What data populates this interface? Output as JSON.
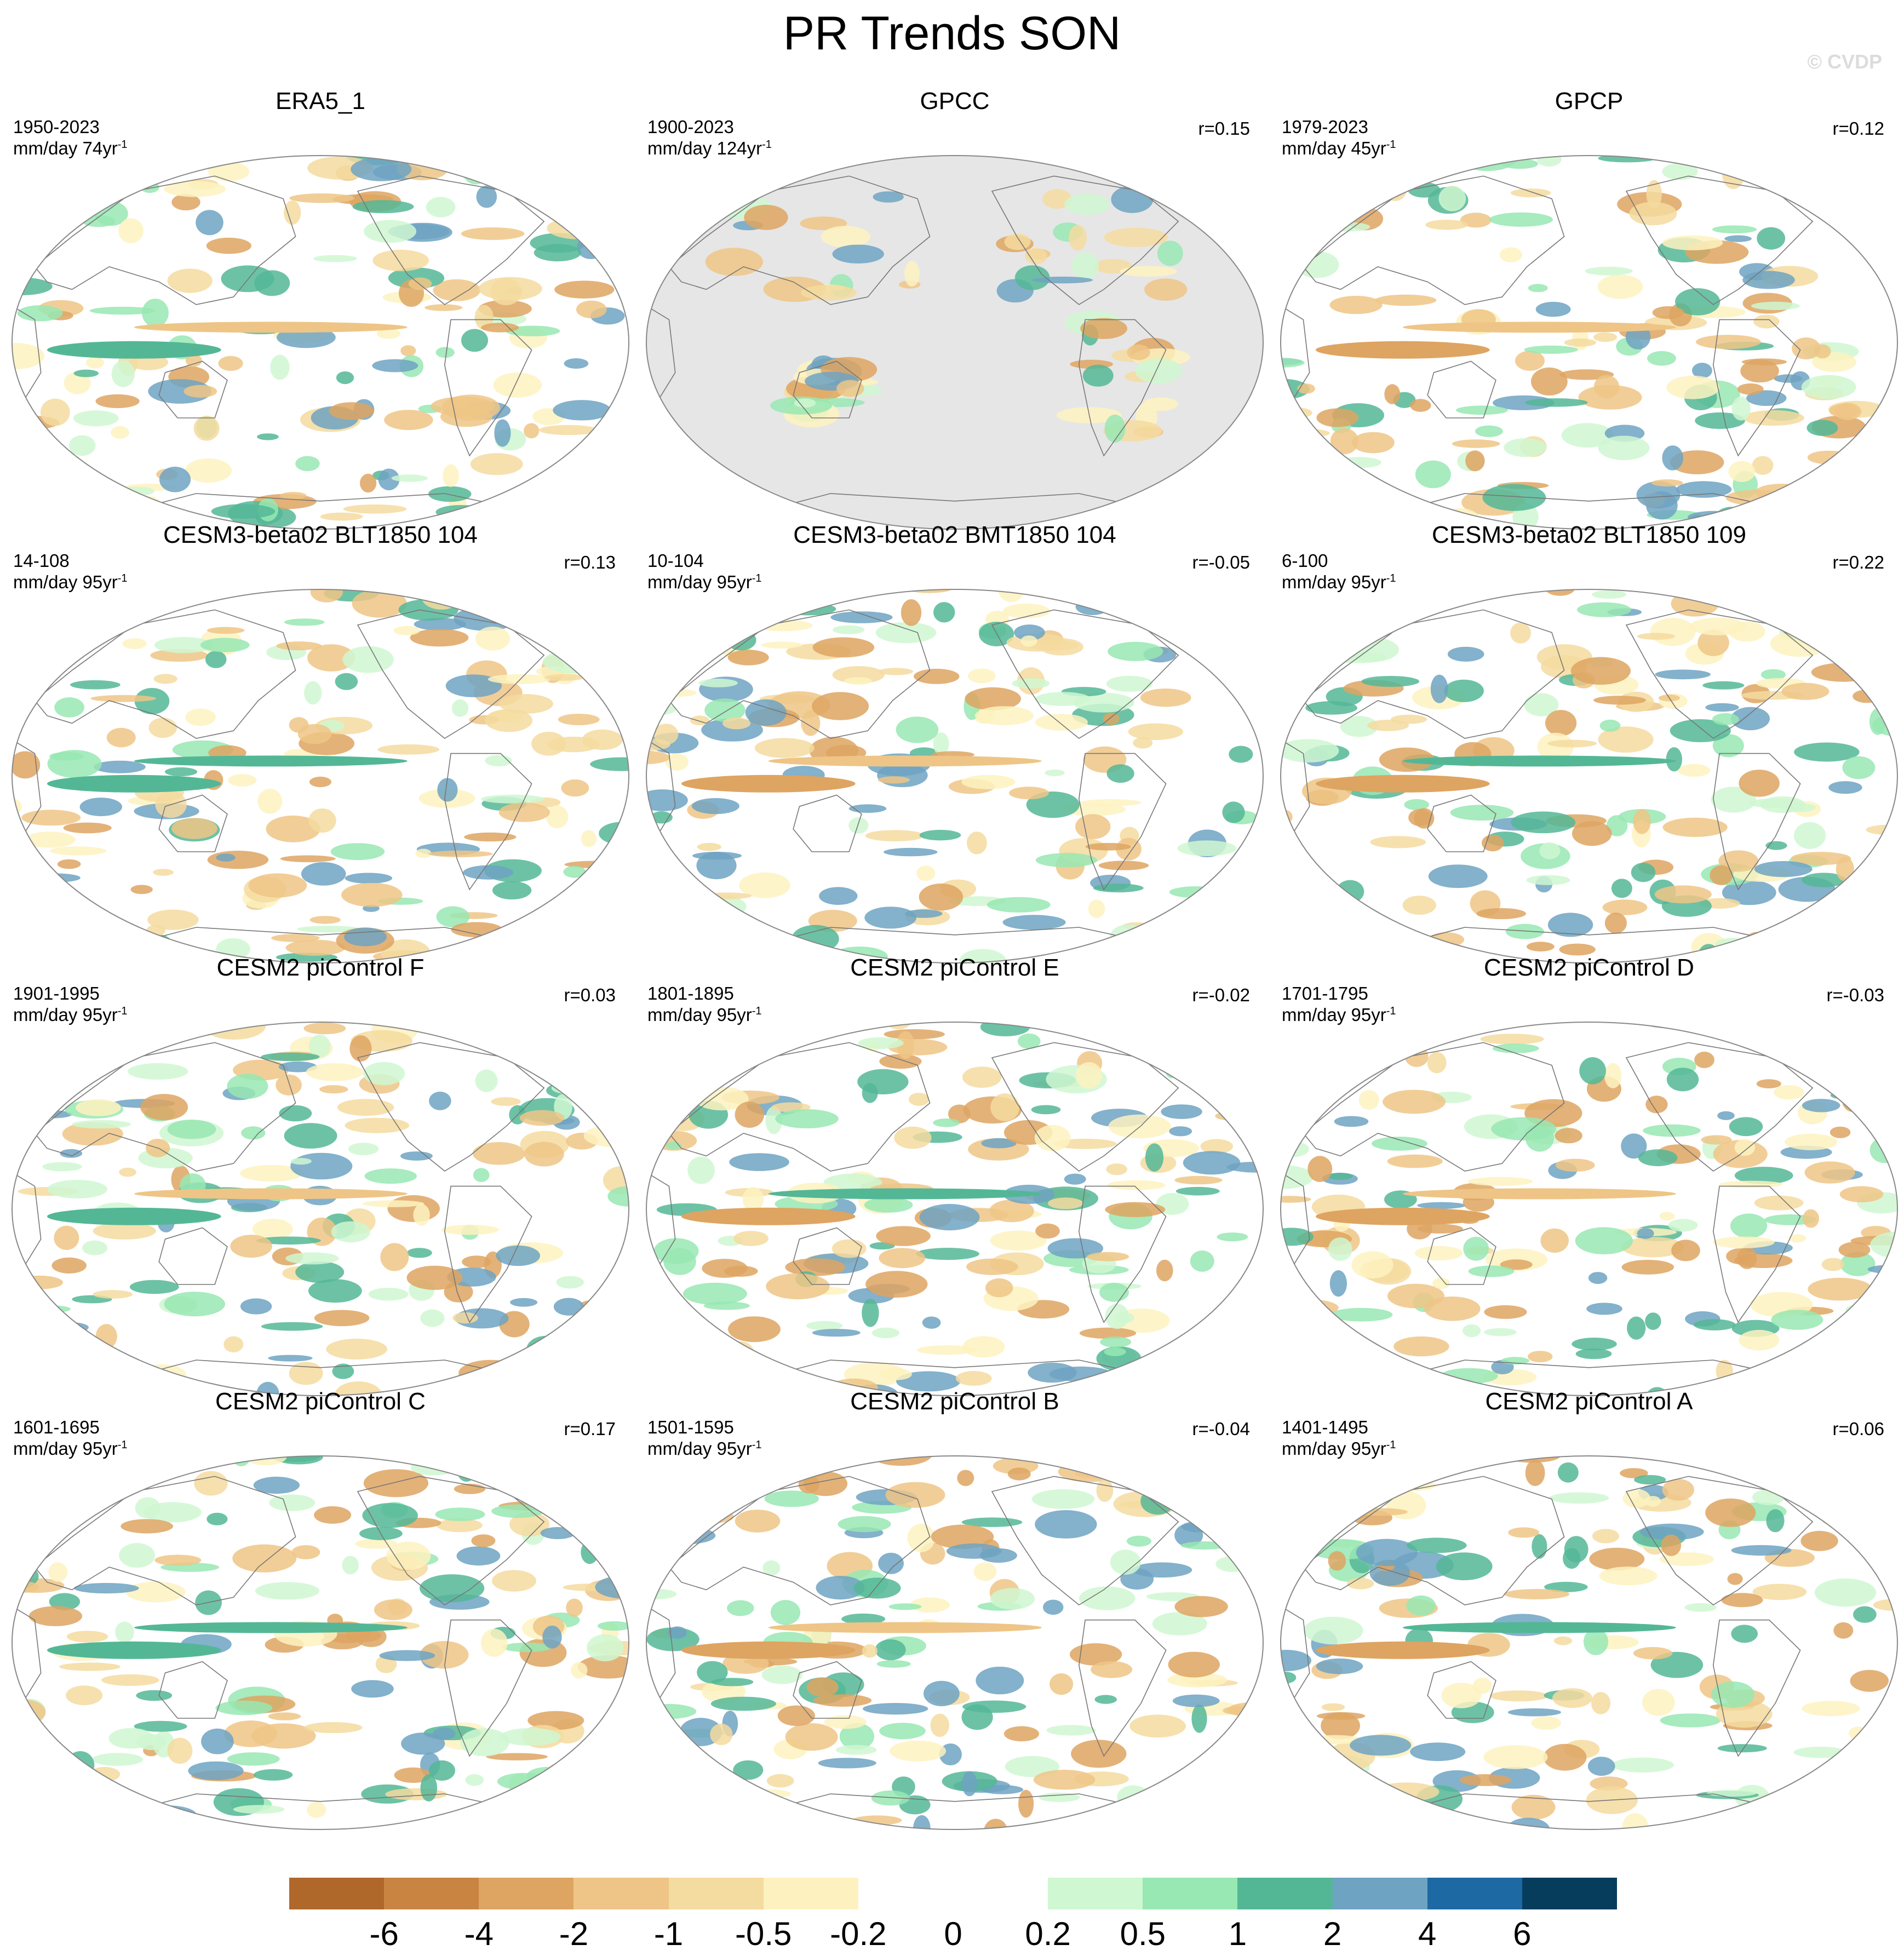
{
  "title": "PR Trends SON",
  "watermark": "© CVDP",
  "colors": {
    "bins": [
      "#b0672a",
      "#c98441",
      "#dea461",
      "#eec586",
      "#f4db9f",
      "#fdf2bf",
      "#ffffff",
      "#ffffff",
      "#cff7d1",
      "#98e8b3",
      "#53b796",
      "#6ea3c2",
      "#1c69a4",
      "#063d5d"
    ],
    "ocean_masked": "#e6e6e6",
    "coast": "#777777"
  },
  "colorbar": {
    "ticks": [
      "-6",
      "-4",
      "-2",
      "-1",
      "-0.5",
      "-0.2",
      "0",
      "0.2",
      "0.5",
      "1",
      "2",
      "4",
      "6"
    ]
  },
  "panels": [
    {
      "title": "ERA5_1",
      "period": "1950-2023",
      "unit": "mm/day 74yr",
      "corr": "",
      "masked_ocean": false
    },
    {
      "title": "GPCC",
      "period": "1900-2023",
      "unit": "mm/day 124yr",
      "corr": "r=0.15",
      "masked_ocean": true
    },
    {
      "title": "GPCP",
      "period": "1979-2023",
      "unit": "mm/day 45yr",
      "corr": "r=0.12",
      "masked_ocean": false
    },
    {
      "title": "CESM3-beta02 BLT1850 104",
      "period": "14-108",
      "unit": "mm/day 95yr",
      "corr": "r=0.13",
      "masked_ocean": false
    },
    {
      "title": "CESM3-beta02 BMT1850 104",
      "period": "10-104",
      "unit": "mm/day 95yr",
      "corr": "r=-0.05",
      "masked_ocean": false
    },
    {
      "title": "CESM3-beta02 BLT1850 109",
      "period": "6-100",
      "unit": "mm/day 95yr",
      "corr": "r=0.22",
      "masked_ocean": false
    },
    {
      "title": "CESM2 piControl F",
      "period": "1901-1995",
      "unit": "mm/day 95yr",
      "corr": "r=0.03",
      "masked_ocean": false
    },
    {
      "title": "CESM2 piControl E",
      "period": "1801-1895",
      "unit": "mm/day 95yr",
      "corr": "r=-0.02",
      "masked_ocean": false
    },
    {
      "title": "CESM2 piControl D",
      "period": "1701-1795",
      "unit": "mm/day 95yr",
      "corr": "r=-0.03",
      "masked_ocean": false
    },
    {
      "title": "CESM2 piControl C",
      "period": "1601-1695",
      "unit": "mm/day 95yr",
      "corr": "r=0.17",
      "masked_ocean": false
    },
    {
      "title": "CESM2 piControl B",
      "period": "1501-1595",
      "unit": "mm/day 95yr",
      "corr": "r=-0.04",
      "masked_ocean": false
    },
    {
      "title": "CESM2 piControl A",
      "period": "1401-1495",
      "unit": "mm/day 95yr",
      "corr": "r=0.06",
      "masked_ocean": false
    }
  ]
}
